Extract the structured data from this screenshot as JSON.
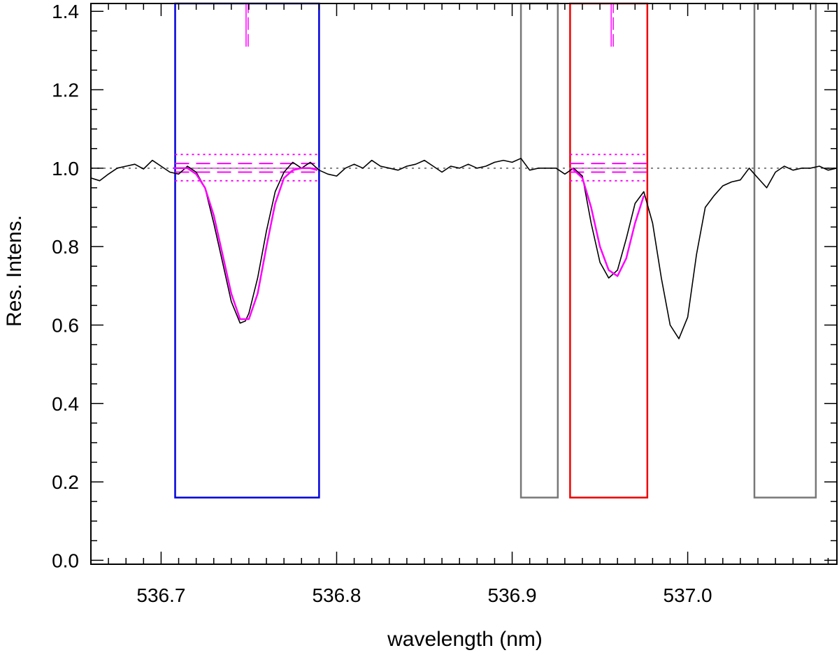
{
  "chart_data": {
    "type": "line",
    "xlabel": "wavelength (nm)",
    "ylabel": "Res. Intens.",
    "xlim": [
      536.66,
      537.085
    ],
    "ylim": [
      -0.01,
      1.42
    ],
    "x_ticks": [
      "536.7",
      "536.8",
      "536.9",
      "537.0"
    ],
    "x_tick_values": [
      536.7,
      536.8,
      536.9,
      537.0
    ],
    "y_ticks": [
      "0.0",
      "0.2",
      "0.4",
      "0.6",
      "0.8",
      "1.0",
      "1.2",
      "1.4"
    ],
    "y_tick_values": [
      0.0,
      0.2,
      0.4,
      0.6,
      0.8,
      1.0,
      1.2,
      1.4
    ],
    "grid": false,
    "continuum_level": 1.0,
    "colors": {
      "spectrum": "#000000",
      "fit": "#ff00ff",
      "continuum": "#808080",
      "box_blue": "#0000dd",
      "box_red": "#ee0000",
      "box_gray": "#777777"
    },
    "spectrum": {
      "x": [
        536.66,
        536.665,
        536.67,
        536.675,
        536.68,
        536.685,
        536.69,
        536.695,
        536.7,
        536.705,
        536.71,
        536.715,
        536.72,
        536.725,
        536.73,
        536.735,
        536.74,
        536.745,
        536.748,
        536.75,
        536.755,
        536.76,
        536.765,
        536.77,
        536.775,
        536.78,
        536.785,
        536.79,
        536.795,
        536.8,
        536.805,
        536.81,
        536.815,
        536.82,
        536.825,
        536.83,
        536.835,
        536.84,
        536.845,
        536.85,
        536.855,
        536.86,
        536.865,
        536.87,
        536.875,
        536.88,
        536.885,
        536.89,
        536.895,
        536.9,
        536.905,
        536.91,
        536.915,
        536.92,
        536.925,
        536.93,
        536.935,
        536.94,
        536.945,
        536.95,
        536.955,
        536.96,
        536.965,
        536.97,
        536.975,
        536.98,
        536.985,
        536.99,
        536.995,
        537.0,
        537.005,
        537.01,
        537.015,
        537.02,
        537.025,
        537.03,
        537.035,
        537.04,
        537.045,
        537.05,
        537.055,
        537.06,
        537.065,
        537.07,
        537.075,
        537.08,
        537.085
      ],
      "y": [
        0.975,
        0.968,
        0.985,
        1.0,
        1.005,
        1.01,
        0.998,
        1.02,
        1.005,
        0.99,
        0.985,
        1.005,
        0.99,
        0.95,
        0.86,
        0.76,
        0.66,
        0.605,
        0.61,
        0.63,
        0.72,
        0.84,
        0.94,
        0.99,
        1.015,
        1.0,
        1.015,
        0.995,
        0.985,
        0.98,
        1.0,
        1.01,
        1.0,
        1.02,
        1.005,
        1.0,
        0.995,
        1.005,
        1.01,
        1.02,
        1.005,
        0.99,
        1.005,
        1.0,
        1.01,
        1.0,
        1.005,
        1.015,
        1.02,
        1.015,
        1.025,
        0.995,
        1.0,
        1.0,
        1.0,
        0.985,
        1.0,
        0.98,
        0.86,
        0.76,
        0.72,
        0.74,
        0.82,
        0.91,
        0.94,
        0.86,
        0.72,
        0.6,
        0.565,
        0.62,
        0.78,
        0.9,
        0.93,
        0.955,
        0.965,
        0.97,
        1.0,
        0.975,
        0.95,
        0.99,
        1.005,
        0.995,
        1.0,
        1.0,
        1.005,
        0.995,
        1.0
      ]
    },
    "fit_lines": [
      {
        "x": [
          536.707,
          536.715,
          536.72,
          536.725,
          536.73,
          536.735,
          536.74,
          536.745,
          536.75,
          536.755,
          536.76,
          536.765,
          536.77,
          536.775,
          536.78,
          536.785,
          536.789
        ],
        "y": [
          1.0,
          1.0,
          0.985,
          0.95,
          0.88,
          0.78,
          0.68,
          0.615,
          0.615,
          0.68,
          0.8,
          0.91,
          0.975,
          0.995,
          1.0,
          1.0,
          0.995
        ]
      },
      {
        "x": [
          536.934,
          536.94,
          536.945,
          536.95,
          536.955,
          536.96,
          536.965,
          536.97,
          536.975
        ],
        "y": [
          1.0,
          0.975,
          0.9,
          0.8,
          0.74,
          0.725,
          0.77,
          0.86,
          0.93
        ]
      }
    ],
    "boxes": [
      {
        "x": [
          536.708,
          536.79
        ],
        "y": [
          0.16,
          1.42
        ],
        "color": "box_blue"
      },
      {
        "x": [
          536.905,
          536.926
        ],
        "y": [
          0.16,
          1.42
        ],
        "color": "box_gray"
      },
      {
        "x": [
          536.933,
          536.977
        ],
        "y": [
          0.16,
          1.42
        ],
        "color": "box_red"
      },
      {
        "x": [
          537.038,
          537.073
        ],
        "y": [
          0.16,
          1.42
        ],
        "color": "box_gray"
      }
    ],
    "bands": [
      {
        "x": [
          536.708,
          536.79
        ],
        "levels": [
          0.968,
          0.99,
          1.0,
          1.012,
          1.035
        ]
      },
      {
        "x": [
          536.933,
          536.977
        ],
        "levels": [
          0.968,
          0.99,
          1.0,
          1.012,
          1.035
        ]
      }
    ],
    "line_markers": [
      {
        "x": 536.749,
        "y": [
          1.31,
          1.42
        ]
      },
      {
        "x": 536.957,
        "y": [
          1.31,
          1.42
        ]
      }
    ]
  }
}
